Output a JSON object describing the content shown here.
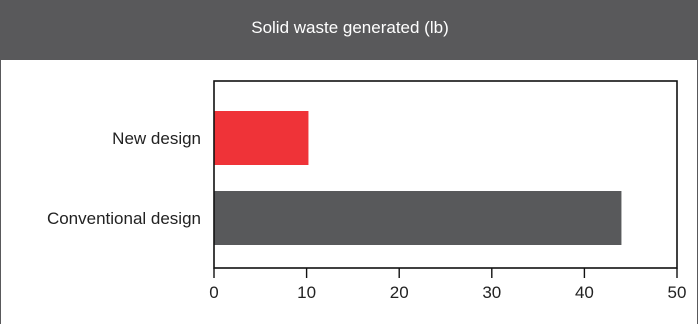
{
  "chart_data": {
    "type": "bar",
    "orientation": "horizontal",
    "title": "Solid waste generated (lb)",
    "categories": [
      "New design",
      "Conventional design"
    ],
    "values": [
      10.2,
      44
    ],
    "bar_colors": [
      "#ef3338",
      "#58595b"
    ],
    "xlim": [
      0,
      50
    ],
    "xticks": [
      "0",
      "10",
      "20",
      "30",
      "40",
      "50"
    ],
    "xlabel": "",
    "ylabel": "",
    "grid": false,
    "header_color": "#59595b"
  }
}
